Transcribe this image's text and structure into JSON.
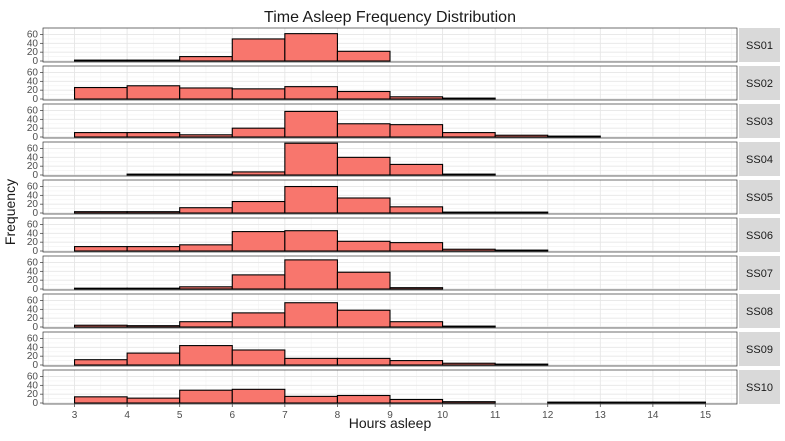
{
  "colors": {
    "bar_fill": "#F8766D",
    "bar_stroke": "#000000",
    "panel_bg": "#ffffff",
    "panel_border": "#333333",
    "grid_major": "#e6e6e6",
    "grid_minor": "#f2f2f2",
    "strip_bg": "#d9d9d9",
    "text": "#1a1a1a",
    "tick_text": "#4d4d4d"
  },
  "chart_data": {
    "type": "bar",
    "title": "Time Asleep Frequency Distribution",
    "xlabel": "Hours asleep",
    "ylabel": "Frequency",
    "xlim": [
      2.4,
      15.6
    ],
    "ylim": [
      0,
      68
    ],
    "x_ticks": [
      3,
      4,
      5,
      6,
      7,
      8,
      9,
      10,
      11,
      12,
      13,
      14,
      15
    ],
    "y_ticks": [
      0,
      20,
      40,
      60
    ],
    "grid": true,
    "facet_strip_position": "right",
    "bin_edges": [
      3,
      4,
      5,
      6,
      7,
      8,
      9,
      10,
      11,
      12,
      13,
      14,
      15
    ],
    "panels": [
      {
        "label": "SS01",
        "values": [
          2,
          2,
          10,
          50,
          62,
          22,
          0,
          0,
          0,
          0,
          0,
          0
        ]
      },
      {
        "label": "SS02",
        "values": [
          26,
          30,
          25,
          23,
          28,
          17,
          5,
          2,
          0,
          0,
          0,
          0
        ]
      },
      {
        "label": "SS03",
        "values": [
          10,
          10,
          5,
          20,
          58,
          30,
          28,
          10,
          4,
          2,
          0,
          0
        ]
      },
      {
        "label": "SS04",
        "values": [
          0,
          2,
          2,
          7,
          72,
          40,
          24,
          2,
          0,
          0,
          0,
          0
        ]
      },
      {
        "label": "SS05",
        "values": [
          3,
          3,
          12,
          26,
          60,
          34,
          14,
          2,
          2,
          0,
          0,
          0
        ]
      },
      {
        "label": "SS06",
        "values": [
          10,
          10,
          14,
          44,
          46,
          22,
          19,
          4,
          2,
          0,
          0,
          0
        ]
      },
      {
        "label": "SS07",
        "values": [
          1,
          1,
          5,
          32,
          66,
          38,
          3,
          0,
          0,
          0,
          0,
          0
        ]
      },
      {
        "label": "SS08",
        "values": [
          4,
          3,
          12,
          32,
          55,
          38,
          12,
          2,
          0,
          0,
          0,
          0
        ]
      },
      {
        "label": "SS09",
        "values": [
          12,
          27,
          44,
          34,
          15,
          15,
          10,
          4,
          2,
          0,
          0,
          0
        ]
      },
      {
        "label": "SS10",
        "values": [
          14,
          11,
          29,
          31,
          15,
          17,
          8,
          3,
          0,
          2,
          2,
          2
        ]
      }
    ]
  }
}
